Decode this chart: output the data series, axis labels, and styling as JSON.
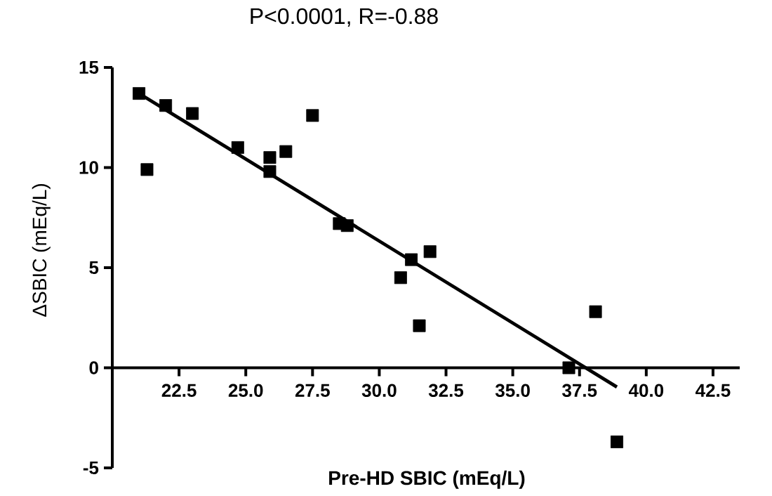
{
  "chart_data": {
    "type": "scatter",
    "title": "P<0.0001, R=-0.88",
    "xlabel": "Pre-HD SBIC (mEq/L)",
    "ylabel": "ΔSBIC (mEq/L)",
    "xlim": [
      20,
      43.5
    ],
    "ylim": [
      -5,
      15
    ],
    "xticks": [
      22.5,
      {
        "value": 25,
        "label": "25.0"
      },
      27.5,
      {
        "value": 30,
        "label": "30.0"
      },
      32.5,
      {
        "value": 35,
        "label": "35.0"
      },
      37.5,
      {
        "value": 40,
        "label": "40.0"
      },
      42.5
    ],
    "yticks": [
      -5,
      0,
      5,
      10,
      15
    ],
    "series": [
      {
        "type": "scatter",
        "color": "#000000",
        "marker": "square",
        "x": [
          21.0,
          21.3,
          22.0,
          23.0,
          24.7,
          25.9,
          25.9,
          26.5,
          27.5,
          28.5,
          28.8,
          31.2,
          31.9,
          30.8,
          31.5,
          38.1,
          37.1,
          38.9
        ],
        "values": [
          13.7,
          9.9,
          13.1,
          12.7,
          11.0,
          10.5,
          9.8,
          10.8,
          12.6,
          7.2,
          7.1,
          5.4,
          5.8,
          4.5,
          2.1,
          2.8,
          0.0,
          -3.7
        ]
      },
      {
        "type": "line",
        "color": "#000000",
        "marker": "none",
        "x": [
          21.0,
          38.9
        ],
        "values": [
          13.7,
          -0.96
        ]
      }
    ]
  }
}
